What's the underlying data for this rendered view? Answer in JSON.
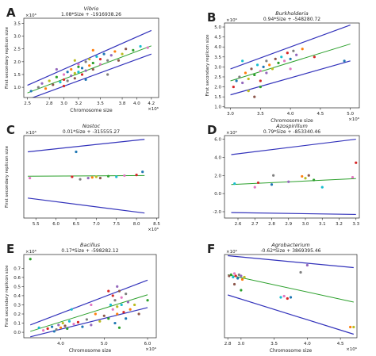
{
  "chart_data": [
    {
      "type": "scatter",
      "panel_letter": "A",
      "title": "Vibrio",
      "equation": "1.08*Size + -1916938.26",
      "xlabel": "Chromosome size",
      "ylabel": "First secondary replicon size",
      "x_exponent": "×10⁶",
      "y_exponent": "×10⁶",
      "xlim": [
        2.45,
        4.3
      ],
      "ylim": [
        0.6,
        3.7
      ],
      "xticks": [
        2.5,
        2.8,
        3.0,
        3.2,
        3.5,
        3.8,
        4.0,
        4.2
      ],
      "yticks": [
        1.0,
        1.5,
        2.0,
        2.5,
        3.0,
        3.5
      ],
      "fit_line": [
        [
          2.5,
          0.78
        ],
        [
          4.2,
          2.62
        ]
      ],
      "upper_bound": [
        [
          2.5,
          1.08
        ],
        [
          4.2,
          3.22
        ]
      ],
      "lower_bound": [
        [
          2.5,
          0.52
        ],
        [
          4.2,
          2.3
        ]
      ],
      "points": [
        [
          2.55,
          0.85
        ],
        [
          2.65,
          1.0
        ],
        [
          2.7,
          1.15
        ],
        [
          2.75,
          0.95
        ],
        [
          2.8,
          1.25
        ],
        [
          2.85,
          1.1
        ],
        [
          2.9,
          1.4
        ],
        [
          2.95,
          1.2
        ],
        [
          3.0,
          1.5
        ],
        [
          3.0,
          1.3
        ],
        [
          3.05,
          1.6
        ],
        [
          3.05,
          1.25
        ],
        [
          3.1,
          1.45
        ],
        [
          3.1,
          1.7
        ],
        [
          3.15,
          1.55
        ],
        [
          3.15,
          1.35
        ],
        [
          3.2,
          1.8
        ],
        [
          3.2,
          1.6
        ],
        [
          3.2,
          1.9
        ],
        [
          3.25,
          1.5
        ],
        [
          3.25,
          1.75
        ],
        [
          3.3,
          2.0
        ],
        [
          3.3,
          1.65
        ],
        [
          3.35,
          1.85
        ],
        [
          3.35,
          2.1
        ],
        [
          3.4,
          1.7
        ],
        [
          3.4,
          1.95
        ],
        [
          3.45,
          2.2
        ],
        [
          3.5,
          1.9
        ],
        [
          3.5,
          2.1
        ],
        [
          3.55,
          2.3
        ],
        [
          3.6,
          2.05
        ],
        [
          3.65,
          2.25
        ],
        [
          3.7,
          2.4
        ],
        [
          3.8,
          2.3
        ],
        [
          3.85,
          2.5
        ],
        [
          3.95,
          2.45
        ],
        [
          4.05,
          2.6
        ],
        [
          4.15,
          2.55
        ],
        [
          3.0,
          1.05
        ],
        [
          3.3,
          1.3
        ],
        [
          3.6,
          1.5
        ],
        [
          2.9,
          1.7
        ],
        [
          3.4,
          2.45
        ],
        [
          3.15,
          2.05
        ],
        [
          3.75,
          2.05
        ]
      ]
    },
    {
      "type": "scatter",
      "panel_letter": "B",
      "title": "Burkholderia",
      "equation": "0.94*Size + -548280.72",
      "xlabel": "Chromosome size",
      "ylabel": "First secondary replicon size",
      "x_exponent": "×10⁶",
      "y_exponent": "×10⁶",
      "xlim": [
        2.9,
        5.15
      ],
      "ylim": [
        0.95,
        5.2
      ],
      "xticks": [
        3.0,
        3.5,
        4.0,
        4.5,
        5.0
      ],
      "yticks": [
        1.0,
        1.5,
        2.0,
        2.5,
        3.0,
        3.5,
        4.0,
        4.5,
        5.0
      ],
      "fit_line": [
        [
          3.0,
          2.3
        ],
        [
          5.0,
          4.15
        ]
      ],
      "upper_bound": [
        [
          3.0,
          2.9
        ],
        [
          5.0,
          5.1
        ]
      ],
      "lower_bound": [
        [
          3.0,
          1.6
        ],
        [
          5.0,
          3.3
        ]
      ],
      "points": [
        [
          3.05,
          2.0
        ],
        [
          3.1,
          2.3
        ],
        [
          3.15,
          2.5
        ],
        [
          3.2,
          2.2
        ],
        [
          3.25,
          2.7
        ],
        [
          3.3,
          2.4
        ],
        [
          3.35,
          2.9
        ],
        [
          3.4,
          2.6
        ],
        [
          3.45,
          3.1
        ],
        [
          3.5,
          2.8
        ],
        [
          3.5,
          2.3
        ],
        [
          3.55,
          3.0
        ],
        [
          3.6,
          3.3
        ],
        [
          3.6,
          2.7
        ],
        [
          3.65,
          3.1
        ],
        [
          3.7,
          2.9
        ],
        [
          3.75,
          3.4
        ],
        [
          3.8,
          3.2
        ],
        [
          3.85,
          3.5
        ],
        [
          3.9,
          3.3
        ],
        [
          3.95,
          3.7
        ],
        [
          4.0,
          3.4
        ],
        [
          4.05,
          3.8
        ],
        [
          4.1,
          3.6
        ],
        [
          4.2,
          3.9
        ],
        [
          3.3,
          1.8
        ],
        [
          3.4,
          1.5
        ],
        [
          3.5,
          2.0
        ],
        [
          3.2,
          3.3
        ],
        [
          4.0,
          2.9
        ],
        [
          4.4,
          3.5
        ],
        [
          4.9,
          3.3
        ]
      ]
    },
    {
      "type": "scatter",
      "panel_letter": "C",
      "title": "Nostoc",
      "equation": "0.01*Size + -315555.27",
      "xlabel": "",
      "ylabel": "First secondary replicon size",
      "x_exponent": "×10⁶",
      "y_exponent": "×10⁶",
      "xlim": [
        5.2,
        8.55
      ],
      "ylim": [
        -3.0,
        3.6
      ],
      "xticks": [
        5.5,
        6.0,
        6.5,
        7.0,
        7.5,
        8.0,
        8.5
      ],
      "yticks": [],
      "fit_line": [
        [
          5.3,
          0.35
        ],
        [
          8.2,
          0.4
        ]
      ],
      "upper_bound": [
        [
          5.3,
          2.3
        ],
        [
          8.2,
          3.3
        ]
      ],
      "lower_bound": [
        [
          5.3,
          -1.4
        ],
        [
          8.2,
          -2.6
        ]
      ],
      "points": [
        [
          5.35,
          0.2
        ],
        [
          6.4,
          0.3
        ],
        [
          6.5,
          2.3
        ],
        [
          6.6,
          0.1
        ],
        [
          6.8,
          0.2
        ],
        [
          6.9,
          0.25
        ],
        [
          7.0,
          0.3
        ],
        [
          7.1,
          0.2
        ],
        [
          7.3,
          0.35
        ],
        [
          7.5,
          0.3
        ],
        [
          7.7,
          0.4
        ],
        [
          8.0,
          0.45
        ],
        [
          8.15,
          0.7
        ]
      ]
    },
    {
      "type": "scatter",
      "panel_letter": "D",
      "title": "Azospirillum",
      "equation": "0.79*Size + -853340.46",
      "xlabel": "",
      "ylabel": "",
      "x_exponent": "",
      "y_exponent": "×10⁶",
      "xlim": [
        2.52,
        3.32
      ],
      "ylim": [
        -2.7,
        6.4
      ],
      "xticks": [
        2.6,
        2.7,
        2.8,
        2.9,
        3.0,
        3.1,
        3.2,
        3.3
      ],
      "yticks": [
        -2.0,
        0.0,
        2.0,
        4.0,
        6.0
      ],
      "fit_line": [
        [
          2.56,
          1.0
        ],
        [
          3.3,
          1.65
        ]
      ],
      "upper_bound": [
        [
          2.56,
          4.3
        ],
        [
          3.3,
          6.0
        ]
      ],
      "lower_bound": [
        [
          2.56,
          -2.1
        ],
        [
          3.3,
          -2.3
        ]
      ],
      "points": [
        [
          2.58,
          1.1
        ],
        [
          2.7,
          0.7
        ],
        [
          2.72,
          1.2
        ],
        [
          2.8,
          1.0
        ],
        [
          2.81,
          2.0
        ],
        [
          2.9,
          1.3
        ],
        [
          2.98,
          1.9
        ],
        [
          3.0,
          1.7
        ],
        [
          3.02,
          2.0
        ],
        [
          3.05,
          1.5
        ],
        [
          3.1,
          0.7
        ],
        [
          3.28,
          1.8
        ],
        [
          3.3,
          3.4
        ]
      ]
    },
    {
      "type": "scatter",
      "panel_letter": "E",
      "title": "Bacillus",
      "equation": "0.17*Size + -598282.12",
      "xlabel": "Chromosome size",
      "ylabel": "First secondary replicon size",
      "x_exponent": "×10⁶",
      "y_exponent": "×10⁶",
      "xlim": [
        3.15,
        6.2
      ],
      "ylim": [
        -0.06,
        0.85
      ],
      "xticks": [
        4.0,
        5.0,
        6.0
      ],
      "yticks": [
        0.0,
        0.1,
        0.2,
        0.3,
        0.4,
        0.5,
        0.6,
        0.7
      ],
      "fit_line": [
        [
          3.3,
          0.01
        ],
        [
          6.0,
          0.41
        ]
      ],
      "upper_bound": [
        [
          3.3,
          0.08
        ],
        [
          6.0,
          0.57
        ]
      ],
      "lower_bound": [
        [
          3.3,
          -0.05
        ],
        [
          6.0,
          0.27
        ]
      ],
      "points": [
        [
          3.3,
          0.8
        ],
        [
          3.5,
          0.05
        ],
        [
          3.6,
          0.02
        ],
        [
          3.7,
          0.04
        ],
        [
          3.8,
          0.06
        ],
        [
          3.9,
          0.03
        ],
        [
          3.95,
          0.08
        ],
        [
          4.0,
          0.05
        ],
        [
          4.05,
          0.1
        ],
        [
          4.1,
          0.07
        ],
        [
          4.15,
          0.04
        ],
        [
          4.2,
          0.12
        ],
        [
          4.3,
          0.09
        ],
        [
          4.4,
          0.11
        ],
        [
          4.5,
          0.06
        ],
        [
          4.6,
          0.14
        ],
        [
          4.7,
          0.08
        ],
        [
          4.8,
          0.2
        ],
        [
          4.9,
          0.12
        ],
        [
          5.0,
          0.18
        ],
        [
          5.1,
          0.15
        ],
        [
          5.15,
          0.3
        ],
        [
          5.2,
          0.25
        ],
        [
          5.2,
          0.4
        ],
        [
          5.25,
          0.1
        ],
        [
          5.25,
          0.35
        ],
        [
          5.3,
          0.5
        ],
        [
          5.3,
          0.2
        ],
        [
          5.3,
          0.28
        ],
        [
          5.35,
          0.45
        ],
        [
          5.35,
          0.05
        ],
        [
          5.4,
          0.3
        ],
        [
          5.4,
          0.38
        ],
        [
          5.45,
          0.22
        ],
        [
          5.5,
          0.15
        ],
        [
          5.5,
          0.42
        ],
        [
          5.55,
          0.33
        ],
        [
          5.6,
          0.25
        ],
        [
          5.7,
          0.3
        ],
        [
          5.8,
          0.2
        ],
        [
          6.0,
          0.35
        ],
        [
          4.25,
          0.25
        ],
        [
          4.7,
          0.3
        ],
        [
          5.1,
          0.45
        ],
        [
          3.85,
          0.01
        ]
      ]
    },
    {
      "type": "scatter",
      "panel_letter": "F",
      "title": "Agrobacterium",
      "equation": "-0.62*Size + 3869395.46",
      "xlabel": "Chromosome size",
      "ylabel": "",
      "x_exponent": "×10⁶",
      "y_exponent": "×10⁶",
      "xlim": [
        2.75,
        4.75
      ],
      "ylim": [
        -0.5,
        3.0
      ],
      "xticks": [
        2.8,
        3.0,
        3.5,
        4.0,
        4.5
      ],
      "yticks": [],
      "fit_line": [
        [
          2.8,
          2.15
        ],
        [
          4.7,
          1.0
        ]
      ],
      "upper_bound": [
        [
          2.8,
          2.95
        ],
        [
          4.7,
          2.45
        ]
      ],
      "lower_bound": [
        [
          2.8,
          1.3
        ],
        [
          4.7,
          -0.35
        ]
      ],
      "points": [
        [
          2.82,
          2.1
        ],
        [
          2.85,
          2.15
        ],
        [
          2.88,
          2.05
        ],
        [
          2.9,
          2.2
        ],
        [
          2.92,
          2.1
        ],
        [
          2.95,
          2.0
        ],
        [
          2.97,
          2.15
        ],
        [
          3.0,
          2.1
        ],
        [
          3.02,
          1.95
        ],
        [
          3.05,
          2.05
        ],
        [
          2.9,
          1.75
        ],
        [
          3.0,
          1.5
        ],
        [
          3.6,
          1.2
        ],
        [
          3.65,
          1.25
        ],
        [
          3.7,
          1.15
        ],
        [
          3.75,
          1.2
        ],
        [
          3.9,
          2.25
        ],
        [
          4.0,
          2.55
        ],
        [
          4.65,
          -0.05
        ],
        [
          4.7,
          -0.05
        ]
      ]
    }
  ],
  "colors": {
    "fit_line": "#2ca02c",
    "bound_line": "#3333bb",
    "point_palette": [
      "#1f77b4",
      "#ff7f0e",
      "#2ca02c",
      "#d62728",
      "#9467bd",
      "#8c564b",
      "#e377c2",
      "#7f7f7f",
      "#bcbd22",
      "#17becf"
    ]
  }
}
